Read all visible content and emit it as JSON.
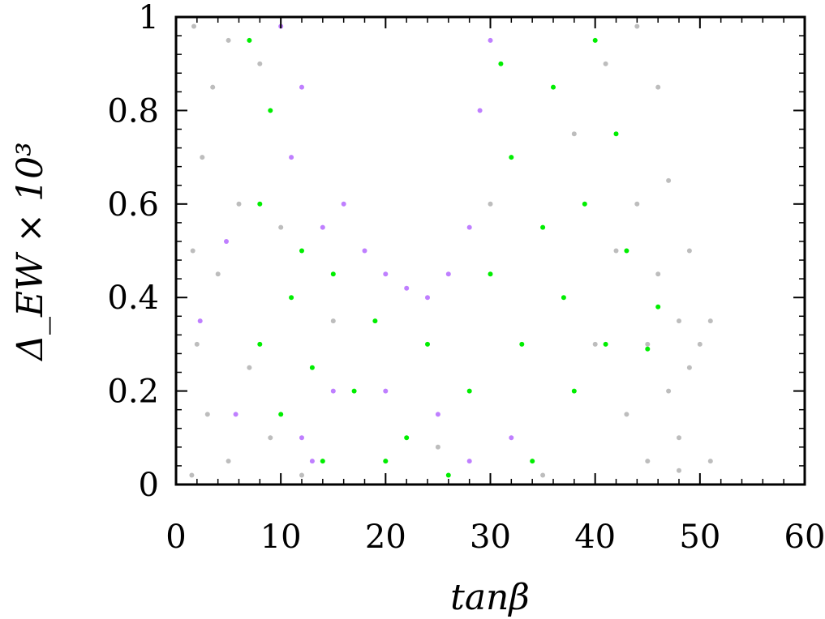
{
  "chart_data": {
    "type": "scatter",
    "title": "",
    "xlabel": "tanβ",
    "ylabel": "Δ_EW × 10³",
    "xlim": [
      0,
      60
    ],
    "ylim": [
      0,
      1
    ],
    "x_ticks": [
      "0",
      "10",
      "20",
      "30",
      "40",
      "50",
      "60"
    ],
    "y_ticks": [
      "0",
      "0.2",
      "0.4",
      "0.6",
      "0.8",
      "1"
    ],
    "grid": false,
    "legend": "none",
    "series": [
      {
        "color": "#bdbdbd",
        "points": [
          [
            1.5,
            0.02
          ],
          [
            1.6,
            0.5
          ],
          [
            1.7,
            0.98
          ],
          [
            2,
            0.3
          ],
          [
            2.5,
            0.7
          ],
          [
            3,
            0.15
          ],
          [
            3.5,
            0.85
          ],
          [
            4,
            0.45
          ],
          [
            5,
            0.05
          ],
          [
            5,
            0.95
          ],
          [
            6,
            0.6
          ],
          [
            7,
            0.25
          ],
          [
            8,
            0.9
          ],
          [
            9,
            0.1
          ],
          [
            10,
            0.55
          ],
          [
            12,
            0.02
          ],
          [
            15,
            0.35
          ],
          [
            20,
            0.05
          ],
          [
            25,
            0.08
          ],
          [
            30,
            0.6
          ],
          [
            35,
            0.02
          ],
          [
            38,
            0.75
          ],
          [
            40,
            0.3
          ],
          [
            41,
            0.9
          ],
          [
            42,
            0.5
          ],
          [
            43,
            0.15
          ],
          [
            44,
            0.98
          ],
          [
            44,
            0.6
          ],
          [
            45,
            0.3
          ],
          [
            45,
            0.05
          ],
          [
            46,
            0.45
          ],
          [
            46,
            0.85
          ],
          [
            47,
            0.2
          ],
          [
            47,
            0.65
          ],
          [
            48,
            0.1
          ],
          [
            48,
            0.35
          ],
          [
            49,
            0.25
          ],
          [
            49,
            0.5
          ],
          [
            50,
            0.3
          ],
          [
            51,
            0.05
          ],
          [
            51,
            0.35
          ],
          [
            48,
            0.03
          ]
        ]
      },
      {
        "color": "#00ee00",
        "points": [
          [
            7,
            0.95
          ],
          [
            8,
            0.6
          ],
          [
            8,
            0.3
          ],
          [
            9,
            0.8
          ],
          [
            10,
            0.15
          ],
          [
            11,
            0.4
          ],
          [
            12,
            0.5
          ],
          [
            13,
            0.25
          ],
          [
            14,
            0.05
          ],
          [
            15,
            0.45
          ],
          [
            17,
            0.2
          ],
          [
            19,
            0.35
          ],
          [
            20,
            0.05
          ],
          [
            22,
            0.1
          ],
          [
            24,
            0.3
          ],
          [
            26,
            0.02
          ],
          [
            28,
            0.2
          ],
          [
            30,
            0.45
          ],
          [
            31,
            0.9
          ],
          [
            32,
            0.7
          ],
          [
            33,
            0.3
          ],
          [
            34,
            0.05
          ],
          [
            35,
            0.55
          ],
          [
            36,
            0.85
          ],
          [
            37,
            0.4
          ],
          [
            38,
            0.2
          ],
          [
            39,
            0.6
          ],
          [
            40,
            0.95
          ],
          [
            41,
            0.3
          ],
          [
            42,
            0.75
          ],
          [
            43,
            0.5
          ],
          [
            45,
            0.29
          ],
          [
            46,
            0.38
          ]
        ]
      },
      {
        "color": "#bf7fff",
        "points": [
          [
            10,
            0.98
          ],
          [
            11,
            0.7
          ],
          [
            12,
            0.85
          ],
          [
            14,
            0.55
          ],
          [
            16,
            0.6
          ],
          [
            18,
            0.5
          ],
          [
            20,
            0.45
          ],
          [
            22,
            0.42
          ],
          [
            24,
            0.4
          ],
          [
            26,
            0.45
          ],
          [
            28,
            0.55
          ],
          [
            29,
            0.8
          ],
          [
            30,
            0.95
          ],
          [
            12,
            0.1
          ],
          [
            13,
            0.05
          ],
          [
            15,
            0.2
          ],
          [
            20,
            0.2
          ],
          [
            25,
            0.15
          ],
          [
            28,
            0.05
          ],
          [
            32,
            0.1
          ],
          [
            2.3,
            0.35
          ],
          [
            4.8,
            0.52
          ],
          [
            5.7,
            0.15
          ]
        ]
      }
    ]
  }
}
